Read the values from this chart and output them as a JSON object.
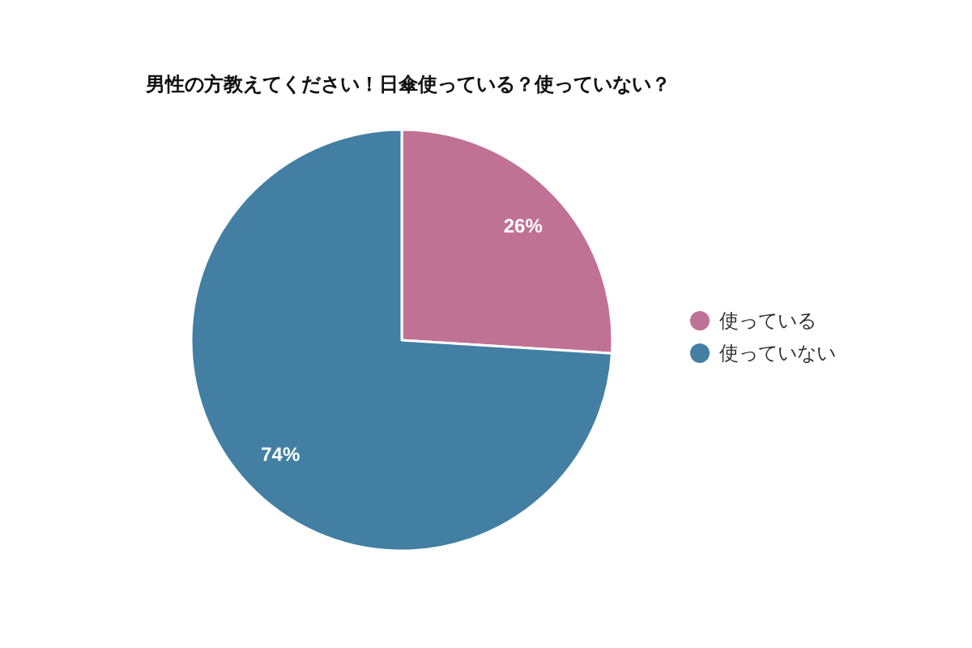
{
  "chart_data": {
    "type": "pie",
    "title": "男性の方教えてください！日傘使っている？使っていない？",
    "categories": [
      "使っている",
      "使っていない"
    ],
    "values": [
      26,
      74
    ],
    "colors": [
      "#c07294",
      "#427fa3"
    ],
    "value_labels": [
      "26%",
      "74%"
    ],
    "legend": "right"
  }
}
